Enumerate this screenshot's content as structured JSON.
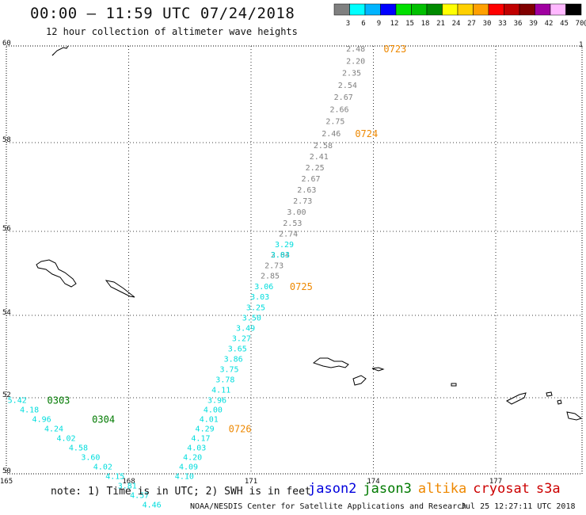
{
  "header": {
    "title": "00:00 – 11:59 UTC 07/24/2018",
    "subtitle": "12 hour collection of altimeter wave heights"
  },
  "legend": {
    "colors": [
      "#808080",
      "#00ffff",
      "#00b4ff",
      "#0000ff",
      "#00e000",
      "#00c000",
      "#008a00",
      "#ffff00",
      "#ffd000",
      "#ffa000",
      "#ff0000",
      "#c00000",
      "#800000",
      "#a000a0",
      "#ffb8ff",
      "#000000"
    ],
    "labels": [
      "3",
      "6",
      "9",
      "12",
      "15",
      "18",
      "21",
      "24",
      "27",
      "30",
      "33",
      "36",
      "39",
      "42",
      "45",
      "70"
    ],
    "unit": "(ft)"
  },
  "axes": {
    "lon_ticks": [
      "165",
      "168",
      "171",
      "174",
      "177"
    ],
    "lat_ticks": [
      "60",
      "58",
      "56",
      "54",
      "52",
      "50"
    ],
    "corner_label": "1"
  },
  "satellite_colors": {
    "jason2": "#0000dd",
    "jason3": "#007a00",
    "altika": "#ee8800",
    "sat_gray": "#808080",
    "sat_cyan": "#00dddd"
  },
  "tracks": [
    {
      "name": "gray-pass",
      "color": "#808080",
      "points": [
        {
          "lon": 173.8,
          "lat": 59.95,
          "v": "2.48"
        },
        {
          "lon": 173.8,
          "lat": 59.7,
          "v": "2.20"
        },
        {
          "lon": 173.7,
          "lat": 59.45,
          "v": "2.35"
        },
        {
          "lon": 173.6,
          "lat": 59.2,
          "v": "2.54"
        },
        {
          "lon": 173.5,
          "lat": 58.95,
          "v": "2.67"
        },
        {
          "lon": 173.4,
          "lat": 58.7,
          "v": "2.66"
        },
        {
          "lon": 173.3,
          "lat": 58.45,
          "v": "2.75"
        },
        {
          "lon": 173.2,
          "lat": 58.2,
          "v": "2.46"
        },
        {
          "lon": 173.0,
          "lat": 57.95,
          "v": "2.58"
        },
        {
          "lon": 172.9,
          "lat": 57.7,
          "v": "2.41"
        },
        {
          "lon": 172.8,
          "lat": 57.45,
          "v": "2.25"
        },
        {
          "lon": 172.7,
          "lat": 57.2,
          "v": "2.67"
        },
        {
          "lon": 172.6,
          "lat": 56.95,
          "v": "2.63"
        },
        {
          "lon": 172.5,
          "lat": 56.7,
          "v": "2.73"
        },
        {
          "lon": 172.35,
          "lat": 56.45,
          "v": "3.00"
        },
        {
          "lon": 172.25,
          "lat": 56.2,
          "v": "2.53"
        },
        {
          "lon": 172.15,
          "lat": 55.95,
          "v": "2.74"
        },
        {
          "lon": 171.95,
          "lat": 55.45,
          "v": "2.84"
        },
        {
          "lon": 171.8,
          "lat": 55.2,
          "v": "2.73"
        },
        {
          "lon": 171.7,
          "lat": 54.95,
          "v": "2.85"
        }
      ]
    },
    {
      "name": "cyan-pass-1",
      "color": "#00dddd",
      "points": [
        {
          "lon": 172.05,
          "lat": 55.7,
          "v": "3.29"
        },
        {
          "lon": 171.95,
          "lat": 55.45,
          "v": "3.03"
        },
        {
          "lon": 171.55,
          "lat": 54.7,
          "v": "3.06"
        },
        {
          "lon": 171.45,
          "lat": 54.45,
          "v": "3.03"
        },
        {
          "lon": 171.35,
          "lat": 54.2,
          "v": "3.25"
        },
        {
          "lon": 171.25,
          "lat": 53.95,
          "v": "3.50"
        },
        {
          "lon": 171.1,
          "lat": 53.7,
          "v": "3.49"
        },
        {
          "lon": 171.0,
          "lat": 53.45,
          "v": "3.27"
        },
        {
          "lon": 170.9,
          "lat": 53.2,
          "v": "3.65"
        },
        {
          "lon": 170.8,
          "lat": 52.95,
          "v": "3.86"
        },
        {
          "lon": 170.7,
          "lat": 52.7,
          "v": "3.75"
        },
        {
          "lon": 170.6,
          "lat": 52.45,
          "v": "3.78"
        },
        {
          "lon": 170.5,
          "lat": 52.2,
          "v": "4.11"
        },
        {
          "lon": 170.4,
          "lat": 51.95,
          "v": "3.96"
        },
        {
          "lon": 170.3,
          "lat": 51.7,
          "v": "4.00"
        },
        {
          "lon": 170.2,
          "lat": 51.45,
          "v": "4.01"
        },
        {
          "lon": 170.1,
          "lat": 51.2,
          "v": "4.29"
        },
        {
          "lon": 170.0,
          "lat": 50.95,
          "v": "4.17"
        },
        {
          "lon": 169.9,
          "lat": 50.7,
          "v": "4.03"
        },
        {
          "lon": 169.8,
          "lat": 50.45,
          "v": "4.20"
        },
        {
          "lon": 169.7,
          "lat": 50.2,
          "v": "4.09"
        },
        {
          "lon": 169.6,
          "lat": 49.95,
          "v": "4.10"
        }
      ]
    },
    {
      "name": "cyan-pass-2",
      "color": "#00dddd",
      "points": [
        {
          "lon": 165.5,
          "lat": 51.95,
          "v": "5.42"
        },
        {
          "lon": 165.8,
          "lat": 51.7,
          "v": "4.18"
        },
        {
          "lon": 166.1,
          "lat": 51.45,
          "v": "4.96"
        },
        {
          "lon": 166.4,
          "lat": 51.2,
          "v": "4.24"
        },
        {
          "lon": 166.7,
          "lat": 50.95,
          "v": "4.02"
        },
        {
          "lon": 167.0,
          "lat": 50.7,
          "v": "4.58"
        },
        {
          "lon": 167.3,
          "lat": 50.45,
          "v": "3.60"
        },
        {
          "lon": 167.6,
          "lat": 50.2,
          "v": "4.02"
        },
        {
          "lon": 167.9,
          "lat": 49.95,
          "v": "4.15"
        },
        {
          "lon": 168.2,
          "lat": 49.7,
          "v": "3.81"
        },
        {
          "lon": 168.5,
          "lat": 49.45,
          "v": "4.57"
        },
        {
          "lon": 168.8,
          "lat": 49.2,
          "v": "4.46"
        }
      ]
    }
  ],
  "time_tags": [
    {
      "lon": 174.25,
      "lat": 59.95,
      "t": "0723",
      "color": "#ee8800"
    },
    {
      "lon": 173.55,
      "lat": 58.2,
      "t": "0724",
      "color": "#ee8800"
    },
    {
      "lon": 171.95,
      "lat": 54.7,
      "t": "0725",
      "color": "#ee8800"
    },
    {
      "lon": 170.45,
      "lat": 51.2,
      "t": "0726",
      "color": "#ee8800"
    },
    {
      "lon": 166.0,
      "lat": 51.95,
      "t": "0303",
      "color": "#007a00"
    },
    {
      "lon": 167.1,
      "lat": 51.45,
      "t": "0304",
      "color": "#007a00"
    }
  ],
  "footer": {
    "note": "note: 1) Time is in UTC; 2) SWH is in feet",
    "sat_names": [
      "jason2",
      "jason3",
      "altika",
      "cryosat",
      "s3a"
    ],
    "sat_name_colors": [
      "#0000dd",
      "#007a00",
      "#ee8800",
      "#cc0000",
      "#cc0000"
    ],
    "credit": "NOAA/NESDIS Center for Satellite Applications and Research",
    "timestamp": "Jul 25 12:27:11 UTC 2018"
  }
}
